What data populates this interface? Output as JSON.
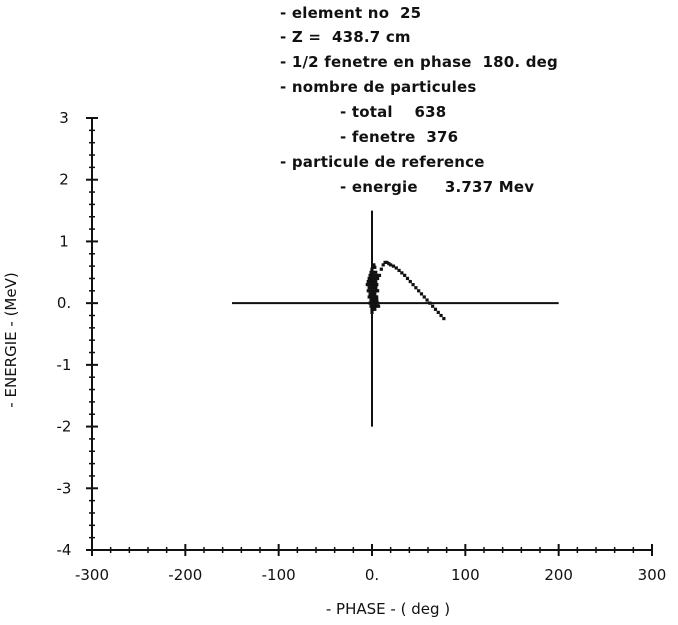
{
  "chart_data": {
    "type": "scatter",
    "xlabel": "- PHASE - ( deg )",
    "ylabel": "- ENERGIE - (MeV)",
    "xlim": [
      -300,
      300
    ],
    "ylim": [
      -4,
      3
    ],
    "x_ticks": [
      {
        "value": -300,
        "label": "-300"
      },
      {
        "value": -200,
        "label": "-200"
      },
      {
        "value": -100,
        "label": "-100"
      },
      {
        "value": 0,
        "label": "0."
      },
      {
        "value": 100,
        "label": "100"
      },
      {
        "value": 200,
        "label": "200"
      },
      {
        "value": 300,
        "label": "300"
      }
    ],
    "y_ticks": [
      {
        "value": 3,
        "label": "3"
      },
      {
        "value": 2,
        "label": "2"
      },
      {
        "value": 1,
        "label": "1"
      },
      {
        "value": 0,
        "label": "0."
      },
      {
        "value": -1,
        "label": "-1"
      },
      {
        "value": -2,
        "label": "-2"
      },
      {
        "value": -3,
        "label": "-3"
      },
      {
        "value": -4,
        "label": "-4"
      }
    ],
    "grid": false,
    "reference_lines": {
      "horizontal": {
        "y": 0,
        "x_from": -150,
        "x_to": 200
      },
      "vertical": {
        "x": 0,
        "y_from": -2,
        "y_to": 1.5
      }
    },
    "series": [
      {
        "x": [
          -5,
          -4,
          -3,
          -2,
          -1,
          0,
          1,
          2,
          3,
          4,
          5,
          -4,
          -3,
          -2,
          -1,
          0,
          1,
          2,
          3,
          -3,
          -2,
          -1,
          0,
          1,
          2,
          3,
          4,
          -2,
          -1,
          0,
          1,
          2,
          3,
          4,
          5,
          -1,
          0,
          1,
          2,
          3,
          4,
          5,
          0,
          1,
          2,
          3,
          4,
          5,
          6,
          1,
          2,
          3,
          4,
          5,
          6,
          2,
          3,
          4,
          5,
          3,
          4,
          5,
          6,
          7,
          8,
          10,
          12,
          14,
          16,
          18,
          20,
          23,
          26,
          29,
          32,
          35,
          38,
          41,
          44,
          47,
          50,
          53,
          56,
          59,
          62,
          65,
          68,
          71,
          74,
          77
        ],
        "y": [
          0.3,
          0.35,
          0.4,
          0.45,
          0.5,
          0.55,
          0.5,
          0.45,
          0.4,
          0.35,
          0.3,
          0.2,
          0.25,
          0.3,
          0.35,
          0.4,
          0.35,
          0.3,
          0.25,
          0.1,
          0.15,
          0.2,
          0.25,
          0.2,
          0.15,
          0.1,
          0.05,
          0.0,
          0.05,
          0.1,
          0.05,
          0.0,
          -0.05,
          0.0,
          0.05,
          -0.05,
          -0.1,
          -0.05,
          0.0,
          -0.1,
          -0.05,
          0.1,
          -0.15,
          -0.1,
          0.15,
          0.2,
          0.25,
          0.3,
          0.2,
          0.6,
          0.62,
          0.58,
          0.5,
          0.45,
          0.4,
          0.35,
          0.3,
          0.25,
          0.2,
          0.15,
          0.1,
          0.05,
          0.0,
          -0.05,
          0.45,
          0.55,
          0.62,
          0.66,
          0.66,
          0.64,
          0.62,
          0.6,
          0.57,
          0.53,
          0.49,
          0.45,
          0.4,
          0.35,
          0.3,
          0.25,
          0.2,
          0.15,
          0.1,
          0.05,
          0.0,
          -0.05,
          -0.1,
          -0.15,
          -0.2,
          -0.25
        ]
      }
    ]
  },
  "annotations": {
    "element": "- element no  25",
    "z": "- Z =  438.7 cm",
    "window": "- 1/2 fenetre en phase  180. deg",
    "particles": "- nombre de particules",
    "total": "- total    638",
    "fenetre": "- fenetre  376",
    "reference": "- particule de reference",
    "energy": "- energie     3.737 Mev"
  }
}
